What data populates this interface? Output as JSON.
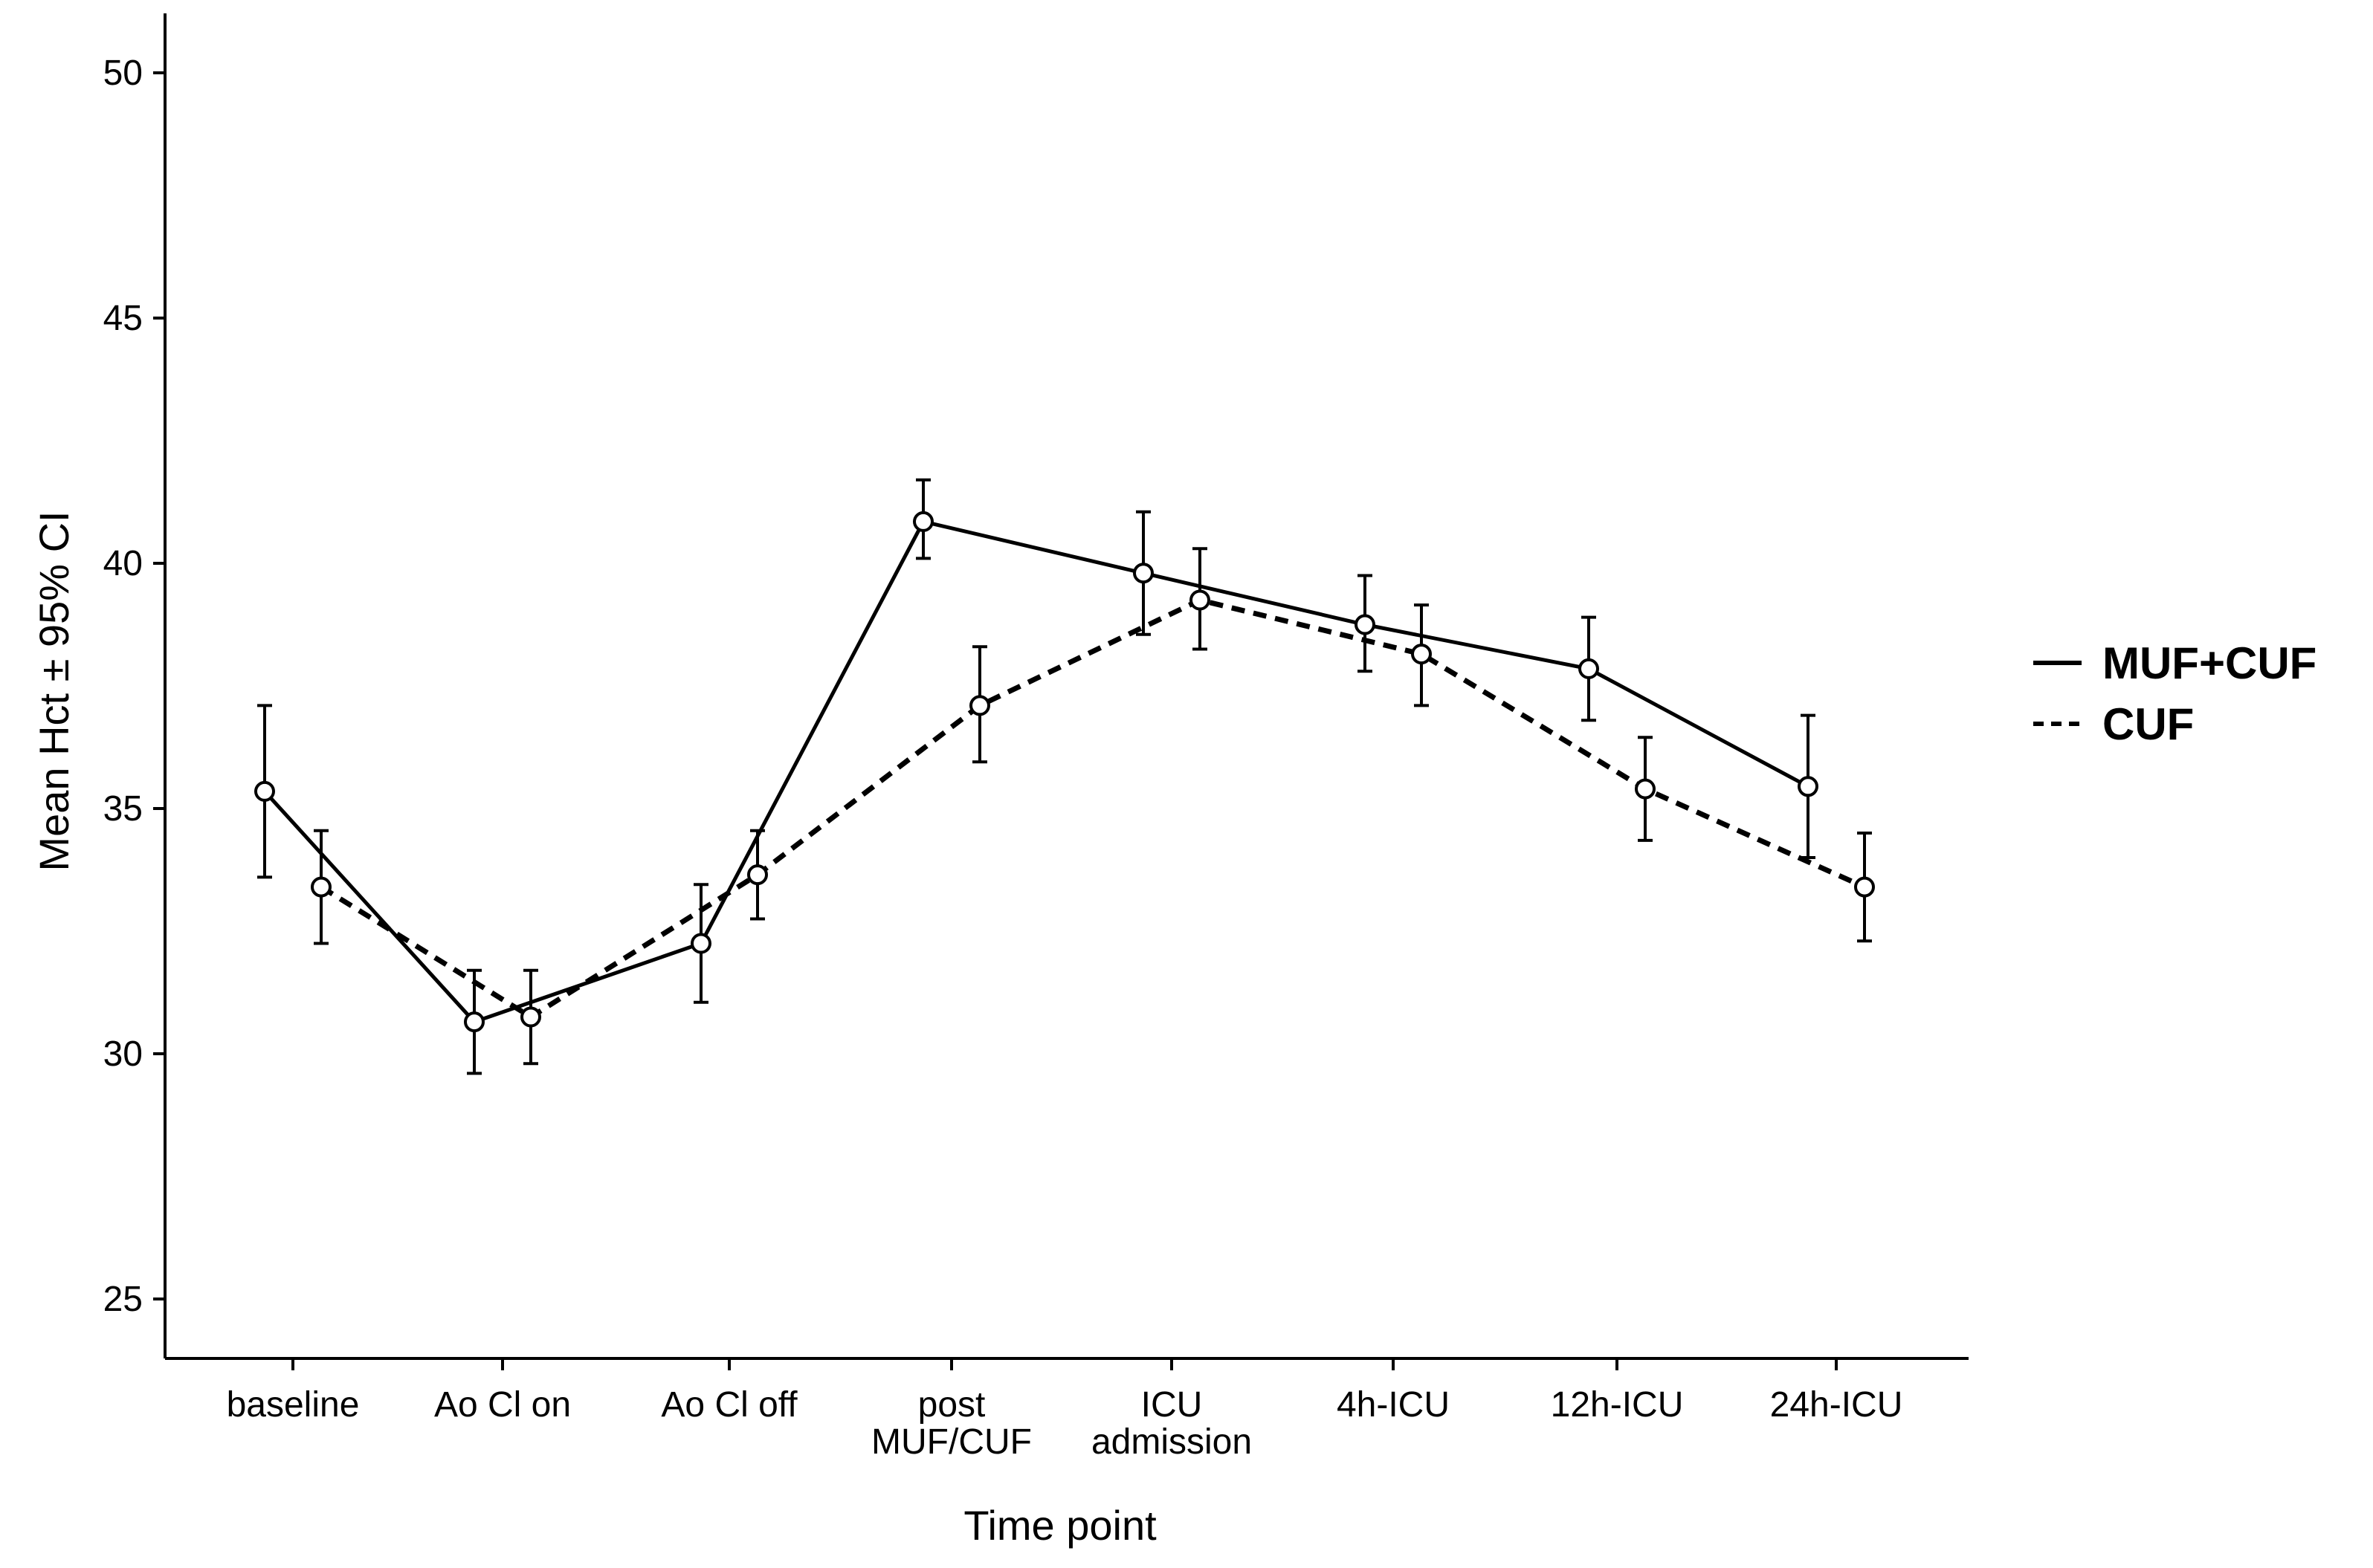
{
  "chart_data": {
    "type": "line",
    "title": "",
    "xlabel": "Time point",
    "ylabel": "Mean Hct ± 95% CI",
    "ylim": [
      23.5,
      51.5
    ],
    "yticks": [
      25,
      30,
      35,
      40,
      45,
      50
    ],
    "grid": false,
    "legend_position": "right",
    "categories": [
      [
        "baseline"
      ],
      [
        "Ao Cl on"
      ],
      [
        "Ao Cl off"
      ],
      [
        "post",
        "MUF/CUF"
      ],
      [
        "ICU",
        "admission"
      ],
      [
        "4h-ICU"
      ],
      [
        "12h-ICU"
      ],
      [
        "24h-ICU"
      ]
    ],
    "series": [
      {
        "name": "MUF+CUF",
        "line_style": "solid",
        "values": [
          35.35,
          30.65,
          32.25,
          40.85,
          39.8,
          38.75,
          37.85,
          35.45
        ],
        "ci_low": [
          33.6,
          29.6,
          31.05,
          40.1,
          38.55,
          37.8,
          36.8,
          34.0
        ],
        "ci_high": [
          37.1,
          31.7,
          33.45,
          41.7,
          41.05,
          39.75,
          38.9,
          36.9
        ]
      },
      {
        "name": "CUF",
        "line_style": "dashed",
        "values": [
          33.4,
          30.75,
          33.65,
          37.1,
          39.25,
          38.15,
          35.4,
          33.4
        ],
        "ci_low": [
          32.25,
          29.8,
          32.75,
          35.95,
          38.25,
          37.1,
          34.35,
          32.3
        ],
        "ci_high": [
          34.55,
          31.7,
          34.55,
          38.3,
          40.3,
          39.15,
          36.45,
          34.5
        ]
      }
    ]
  }
}
